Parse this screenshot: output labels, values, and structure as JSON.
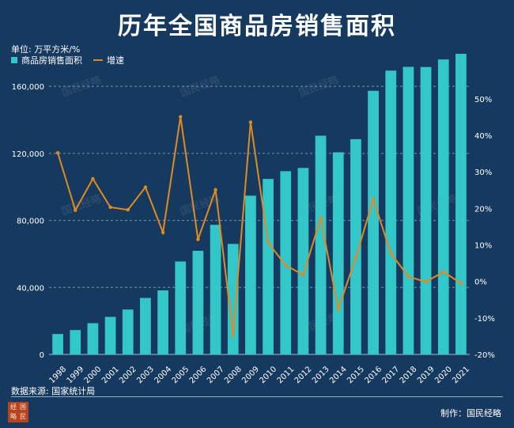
{
  "title": "历年全国商品房销售面积",
  "unit_label": "单位: 万平方米/%",
  "source": "数据来源: 国家统计局",
  "credit": "制作：国民经略",
  "seal_text": [
    "国",
    "经",
    "民",
    "略"
  ],
  "chart_data": {
    "type": "bar",
    "categories": [
      "1998",
      "1999",
      "2000",
      "2001",
      "2002",
      "2003",
      "2004",
      "2005",
      "2006",
      "2007",
      "2008",
      "2009",
      "2010",
      "2011",
      "2012",
      "2013",
      "2014",
      "2015",
      "2016",
      "2017",
      "2018",
      "2019",
      "2020",
      "2021"
    ],
    "series": [
      {
        "name": "商品房销售面积",
        "type": "bar",
        "axis": "left",
        "color": "#34c7c9",
        "values": [
          12185,
          14557,
          18637,
          22412,
          26808,
          33718,
          38232,
          55486,
          61857,
          77354,
          65970,
          94755,
          104765,
          109367,
          111304,
          130551,
          120649,
          128495,
          157349,
          169408,
          171654,
          171558,
          176086,
          179433
        ]
      },
      {
        "name": "增速",
        "type": "line",
        "axis": "right",
        "color": "#e08a22",
        "values": [
          35.2,
          19.5,
          28.1,
          20.3,
          19.6,
          25.8,
          13.4,
          45.1,
          11.5,
          25.1,
          -14.7,
          43.6,
          10.6,
          4.4,
          1.8,
          17.3,
          -7.6,
          6.5,
          22.5,
          7.7,
          1.3,
          -0.1,
          2.6,
          -0.5
        ]
      }
    ],
    "y_left": {
      "min": 0,
      "max": 170000,
      "ticks": [
        0,
        40000,
        80000,
        120000,
        160000
      ],
      "tick_labels": [
        "0",
        "40,000",
        "80,000",
        "120,000",
        "160,000"
      ]
    },
    "y_right": {
      "min": -20,
      "max": 58,
      "ticks": [
        -20,
        -10,
        0,
        10,
        20,
        30,
        40,
        50
      ],
      "tick_labels": [
        "-20%",
        "-10%",
        "0%",
        "10%",
        "20%",
        "30%",
        "40%",
        "50%"
      ]
    },
    "grid": "dashed-horizontal",
    "legend_position": "top-left"
  },
  "watermark": "国民经略"
}
